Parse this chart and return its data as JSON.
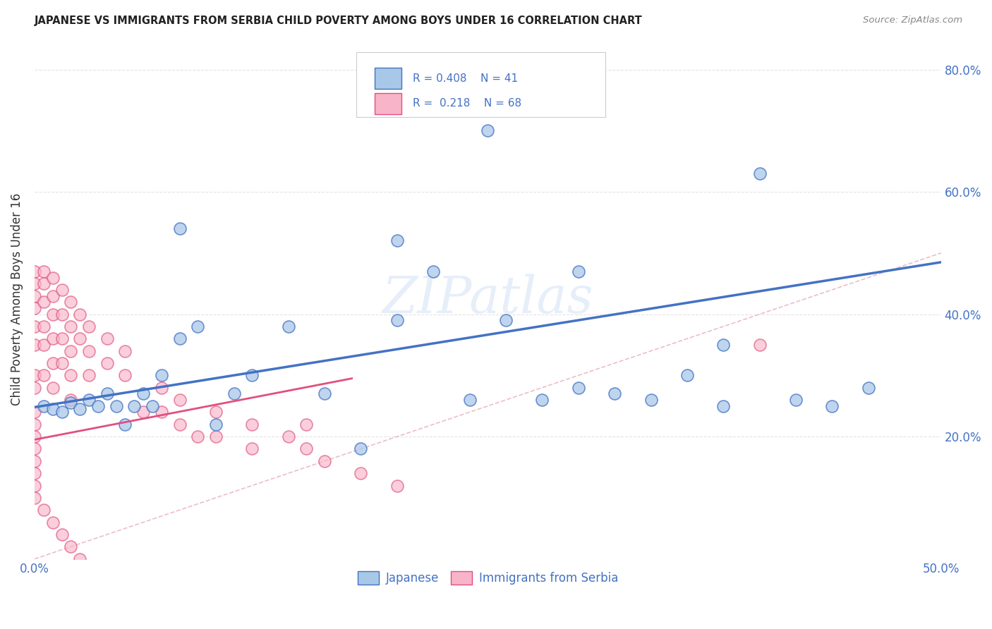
{
  "title": "JAPANESE VS IMMIGRANTS FROM SERBIA CHILD POVERTY AMONG BOYS UNDER 16 CORRELATION CHART",
  "source": "Source: ZipAtlas.com",
  "ylabel": "Child Poverty Among Boys Under 16",
  "xlim": [
    0,
    0.5
  ],
  "ylim": [
    0,
    0.85
  ],
  "xtick_positions": [
    0.0,
    0.5
  ],
  "xtick_labels": [
    "0.0%",
    "50.0%"
  ],
  "ytick_positions": [
    0.2,
    0.4,
    0.6,
    0.8
  ],
  "ytick_labels": [
    "20.0%",
    "40.0%",
    "60.0%",
    "80.0%"
  ],
  "legend_label1": "Japanese",
  "legend_label2": "Immigrants from Serbia",
  "R1": "0.408",
  "N1": "41",
  "R2": "0.218",
  "N2": "68",
  "color_japanese_fill": "#a8c8e8",
  "color_japanese_edge": "#4472c4",
  "color_serbia_fill": "#f8b4c8",
  "color_serbia_edge": "#e05080",
  "color_blue_line": "#4472c4",
  "color_pink_line": "#e05080",
  "color_axis_text": "#4472c4",
  "color_grid": "#dddddd",
  "color_diag": "#ddaaaa",
  "background_color": "#ffffff",
  "watermark": "ZIPatlas",
  "japanese_x": [
    0.005,
    0.01,
    0.015,
    0.02,
    0.025,
    0.03,
    0.035,
    0.04,
    0.045,
    0.05,
    0.055,
    0.06,
    0.065,
    0.07,
    0.08,
    0.09,
    0.1,
    0.11,
    0.12,
    0.14,
    0.16,
    0.18,
    0.2,
    0.22,
    0.24,
    0.26,
    0.28,
    0.3,
    0.32,
    0.34,
    0.36,
    0.38,
    0.4,
    0.42,
    0.44,
    0.46,
    0.25,
    0.3,
    0.08,
    0.2,
    0.38
  ],
  "japanese_y": [
    0.25,
    0.245,
    0.24,
    0.255,
    0.245,
    0.26,
    0.25,
    0.27,
    0.25,
    0.22,
    0.25,
    0.27,
    0.25,
    0.3,
    0.36,
    0.38,
    0.22,
    0.27,
    0.3,
    0.38,
    0.27,
    0.18,
    0.52,
    0.47,
    0.26,
    0.39,
    0.26,
    0.28,
    0.27,
    0.26,
    0.3,
    0.25,
    0.63,
    0.26,
    0.25,
    0.28,
    0.7,
    0.47,
    0.54,
    0.39,
    0.35
  ],
  "serbia_x": [
    0.0,
    0.0,
    0.0,
    0.0,
    0.0,
    0.0,
    0.0,
    0.0,
    0.005,
    0.005,
    0.005,
    0.005,
    0.005,
    0.005,
    0.01,
    0.01,
    0.01,
    0.01,
    0.01,
    0.01,
    0.015,
    0.015,
    0.015,
    0.015,
    0.02,
    0.02,
    0.02,
    0.02,
    0.02,
    0.025,
    0.025,
    0.03,
    0.03,
    0.03,
    0.04,
    0.04,
    0.05,
    0.05,
    0.06,
    0.07,
    0.07,
    0.08,
    0.08,
    0.09,
    0.1,
    0.1,
    0.12,
    0.12,
    0.14,
    0.15,
    0.15,
    0.16,
    0.18,
    0.2,
    0.0,
    0.0,
    0.0,
    0.0,
    0.0,
    0.0,
    0.0,
    0.0,
    0.005,
    0.01,
    0.015,
    0.02,
    0.025,
    0.4
  ],
  "serbia_y": [
    0.47,
    0.45,
    0.43,
    0.41,
    0.38,
    0.35,
    0.3,
    0.28,
    0.47,
    0.45,
    0.42,
    0.38,
    0.35,
    0.3,
    0.46,
    0.43,
    0.4,
    0.36,
    0.32,
    0.28,
    0.44,
    0.4,
    0.36,
    0.32,
    0.42,
    0.38,
    0.34,
    0.3,
    0.26,
    0.4,
    0.36,
    0.38,
    0.34,
    0.3,
    0.36,
    0.32,
    0.34,
    0.3,
    0.24,
    0.28,
    0.24,
    0.26,
    0.22,
    0.2,
    0.24,
    0.2,
    0.22,
    0.18,
    0.2,
    0.22,
    0.18,
    0.16,
    0.14,
    0.12,
    0.24,
    0.22,
    0.2,
    0.18,
    0.16,
    0.14,
    0.12,
    0.1,
    0.08,
    0.06,
    0.04,
    0.02,
    0.0,
    0.35
  ],
  "blue_line_x0": 0.0,
  "blue_line_y0": 0.248,
  "blue_line_x1": 0.5,
  "blue_line_y1": 0.485,
  "pink_line_x0": 0.0,
  "pink_line_y0": 0.195,
  "pink_line_x1": 0.175,
  "pink_line_y1": 0.295
}
